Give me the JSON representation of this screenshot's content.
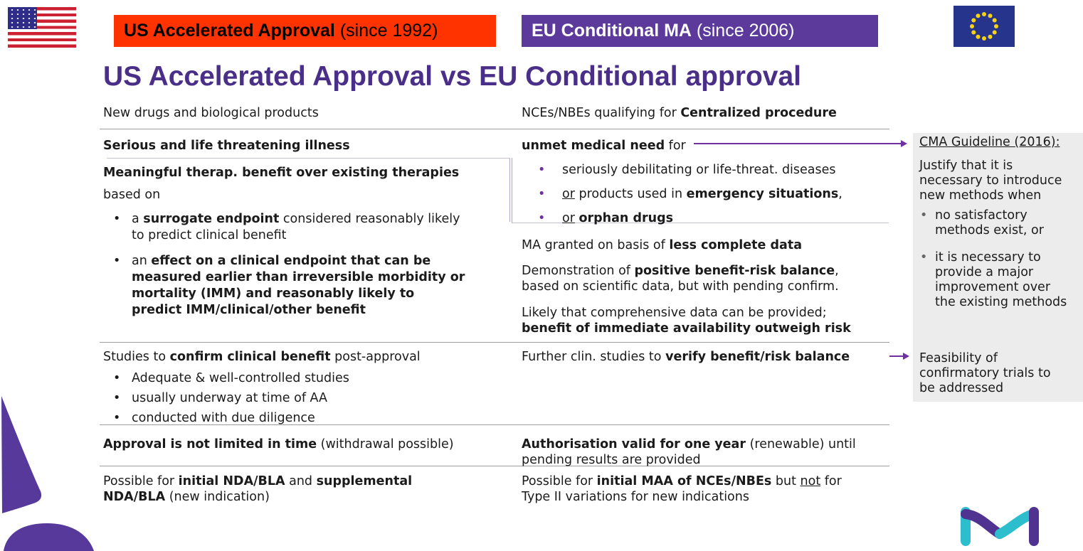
{
  "header": {
    "us_banner": [
      {
        "t": "US Accelerated Approval",
        "b": 1
      },
      {
        "t": " (since 1992)"
      }
    ],
    "eu_banner": [
      {
        "t": "EU Conditional MA",
        "b": 1
      },
      {
        "t": " (since 2006)"
      }
    ]
  },
  "title": "US Accelerated Approval vs EU Conditional approval",
  "colors": {
    "us_banner_bg": "#ff3300",
    "eu_banner_bg": "#5b3a9b",
    "title_purple": "#4a2f88",
    "arrow_purple": "#7030a0",
    "sidebar_bg": "#ececec",
    "brand_purple": "#56399a",
    "logo_purple": "#503291",
    "logo_teal": "#2dbecd"
  },
  "us_column": {
    "scope": [
      {
        "t": "New drugs and biological products"
      }
    ],
    "illness": [
      {
        "t": "Serious and life threatening illness",
        "b": 1
      }
    ],
    "benefit": [
      {
        "t": "Meaningful therap. benefit over existing therapies",
        "b": 1
      }
    ],
    "based_on": [
      {
        "t": "based on"
      }
    ],
    "bullets": [
      [
        {
          "t": "a "
        },
        {
          "t": "surrogate endpoint",
          "b": 1
        },
        {
          "t": " considered reasonably likely"
        },
        {
          "br": 1
        },
        {
          "t": "to predict clinical benefit"
        }
      ],
      [
        {
          "t": "an "
        },
        {
          "t": "effect on a clinical endpoint that can be",
          "b": 1
        },
        {
          "br": 1
        },
        {
          "t": "measured earlier than irreversible morbidity or",
          "b": 1
        },
        {
          "br": 1
        },
        {
          "t": "mortality (IMM) and reasonably likely to",
          "b": 1
        },
        {
          "br": 1
        },
        {
          "t": "predict IMM/clinical/other benefit",
          "b": 1
        }
      ]
    ],
    "confirm": [
      {
        "t": "Studies to "
      },
      {
        "t": "confirm clinical benefit",
        "b": 1
      },
      {
        "t": " post-approval"
      }
    ],
    "confirm_bullets": [
      [
        {
          "t": "Adequate & well-controlled studies"
        }
      ],
      [
        {
          "t": "usually underway at time of AA"
        }
      ],
      [
        {
          "t": "conducted with due diligence"
        }
      ]
    ],
    "time_limit": [
      {
        "t": "Approval is not limited in time",
        "b": 1
      },
      {
        "t": " (withdrawal possible)"
      }
    ],
    "scope2": [
      {
        "t": "Possible for "
      },
      {
        "t": "initial NDA/BLA",
        "b": 1
      },
      {
        "t": " and "
      },
      {
        "t": "supplemental",
        "b": 1
      },
      {
        "br": 1
      },
      {
        "t": "NDA/BLA",
        "b": 1
      },
      {
        "t": " (new indication)"
      }
    ]
  },
  "eu_column": {
    "scope": [
      {
        "t": "NCEs/NBEs qualifying for "
      },
      {
        "t": "Centralized procedure",
        "b": 1
      }
    ],
    "need": [
      {
        "t": "unmet medical need",
        "b": 1
      },
      {
        "t": " for"
      }
    ],
    "need_bullets": [
      [
        {
          "t": "seriously debilitating or life-threat. diseases"
        }
      ],
      [
        {
          "t": "or",
          "u": 1
        },
        {
          "t": " products used in "
        },
        {
          "t": "emergency situations",
          "b": 1
        },
        {
          "t": ","
        }
      ],
      [
        {
          "t": "or",
          "u": 1
        },
        {
          "t": " "
        },
        {
          "t": "orphan drugs",
          "b": 1
        }
      ]
    ],
    "less_data": [
      {
        "t": "MA granted on basis of "
      },
      {
        "t": "less complete data",
        "b": 1
      }
    ],
    "demonstration": [
      {
        "t": "Demonstration of "
      },
      {
        "t": "positive benefit-risk balance",
        "b": 1
      },
      {
        "t": ","
      },
      {
        "br": 1
      },
      {
        "t": "based on scientific data, but with pending confirm."
      }
    ],
    "likely": [
      {
        "t": "Likely that comprehensive data can be provided;"
      },
      {
        "br": 1
      },
      {
        "t": "benefit of immediate availability outweigh risk",
        "b": 1
      }
    ],
    "further": [
      {
        "t": "Further clin. studies to "
      },
      {
        "t": "verify benefit/risk balance",
        "b": 1
      }
    ],
    "validity": [
      {
        "t": "Authorisation valid for one year",
        "b": 1
      },
      {
        "t": " (renewable) until"
      },
      {
        "br": 1
      },
      {
        "t": "pending results are provided"
      }
    ],
    "scope2": [
      {
        "t": "Possible for "
      },
      {
        "t": "initial MAA of NCEs/NBEs",
        "b": 1
      },
      {
        "t": " but "
      },
      {
        "t": "not",
        "u": 1
      },
      {
        "t": " for"
      },
      {
        "br": 1
      },
      {
        "t": "Type II variations for new indications"
      }
    ]
  },
  "sidebar": {
    "guideline_title": [
      {
        "t": "CMA Guideline (2016):",
        "u": 1
      }
    ],
    "guideline_intro": [
      {
        "t": "Justify that it is"
      },
      {
        "br": 1
      },
      {
        "t": "necessary to introduce"
      },
      {
        "br": 1
      },
      {
        "t": "new methods when"
      }
    ],
    "guideline_bullets": [
      [
        {
          "t": "no satisfactory"
        },
        {
          "br": 1
        },
        {
          "t": "methods exist, or"
        }
      ],
      [
        {
          "t": "it is necessary to"
        },
        {
          "br": 1
        },
        {
          "t": "provide a major"
        },
        {
          "br": 1
        },
        {
          "t": "improvement over"
        },
        {
          "br": 1
        },
        {
          "t": "the existing methods"
        }
      ]
    ],
    "feasibility": [
      {
        "t": "Feasibility of"
      },
      {
        "br": 1
      },
      {
        "t": "confirmatory trials to"
      },
      {
        "br": 1
      },
      {
        "t": "be addressed"
      }
    ]
  }
}
